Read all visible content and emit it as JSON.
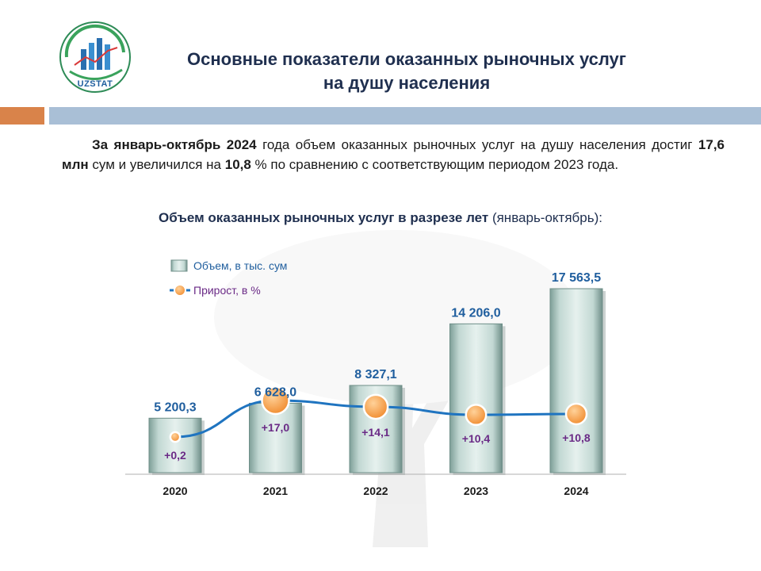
{
  "header": {
    "logo_text": "UZSTAT",
    "title_line1": "Основные показатели оказанных рыночных услуг",
    "title_line2": "на душу населения"
  },
  "intro": {
    "p1": "За январь-октябрь 2024",
    "p2": " года объем оказанных рыночных услуг на душу населения достиг ",
    "p3": "17,6 млн",
    "p4": " сум и увеличился на ",
    "p5": "10,8",
    "p6": " % по сравнению с соответствующим периодом 2023 года."
  },
  "chart_heading": {
    "bold": "Объем оказанных рыночных услуг в разрезе лет",
    "normal": " (январь-октябрь):"
  },
  "colors": {
    "bar_fill": "#c9ddd9",
    "bar_edge": "#6f8f89",
    "value_label": "#1f5e9e",
    "growth_label": "#6a2a86",
    "line": "#1f74c0",
    "marker": "#f6a04a"
  },
  "chart_data": {
    "type": "bar",
    "categories": [
      "2020",
      "2021",
      "2022",
      "2023",
      "2024"
    ],
    "series": [
      {
        "name": "Объем, в тыс. сум",
        "values": [
          5200.3,
          6628.0,
          8327.1,
          14206.0,
          17563.5
        ],
        "labels": [
          "5 200,3",
          "6 628,0",
          "8 327,1",
          "14 206,0",
          "17 563,5"
        ]
      },
      {
        "name": "Прирост, в %",
        "type": "line",
        "values": [
          0.2,
          17.0,
          14.1,
          10.4,
          10.8
        ],
        "labels": [
          "+0,2",
          "+17,0",
          "+14,1",
          "+10,4",
          "+10,8"
        ]
      }
    ],
    "legend_position": "top-left",
    "grid": false
  }
}
